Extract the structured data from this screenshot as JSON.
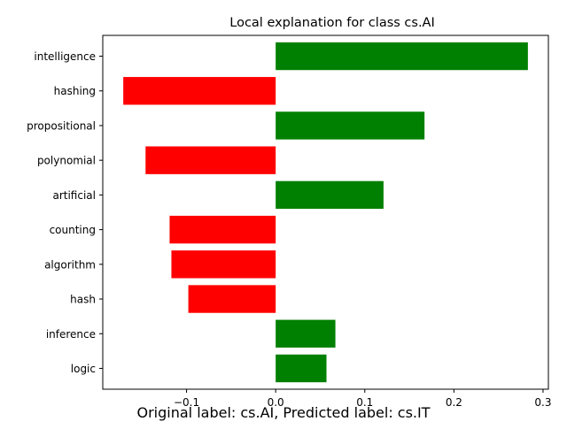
{
  "chart_data": {
    "type": "bar",
    "orientation": "horizontal",
    "title": "Local explanation for class cs.AI",
    "xlabel": "",
    "ylabel": "",
    "categories": [
      "intelligence",
      "hashing",
      "propositional",
      "polynomial",
      "artificial",
      "counting",
      "algorithm",
      "hash",
      "inference",
      "logic"
    ],
    "values": [
      0.283,
      -0.171,
      0.167,
      -0.146,
      0.121,
      -0.119,
      -0.117,
      -0.098,
      0.067,
      0.057
    ],
    "xlim": [
      -0.194,
      0.306
    ],
    "xticks": [
      -0.1,
      0.0,
      0.1,
      0.2,
      0.3
    ],
    "xtick_labels": [
      "−0.1",
      "0.0",
      "0.1",
      "0.2",
      "0.3"
    ],
    "grid": false,
    "legend": "none",
    "colors": {
      "positive": "#008000",
      "negative": "#ff0000"
    }
  },
  "caption": "Original label: cs.AI, Predicted label: cs.IT"
}
